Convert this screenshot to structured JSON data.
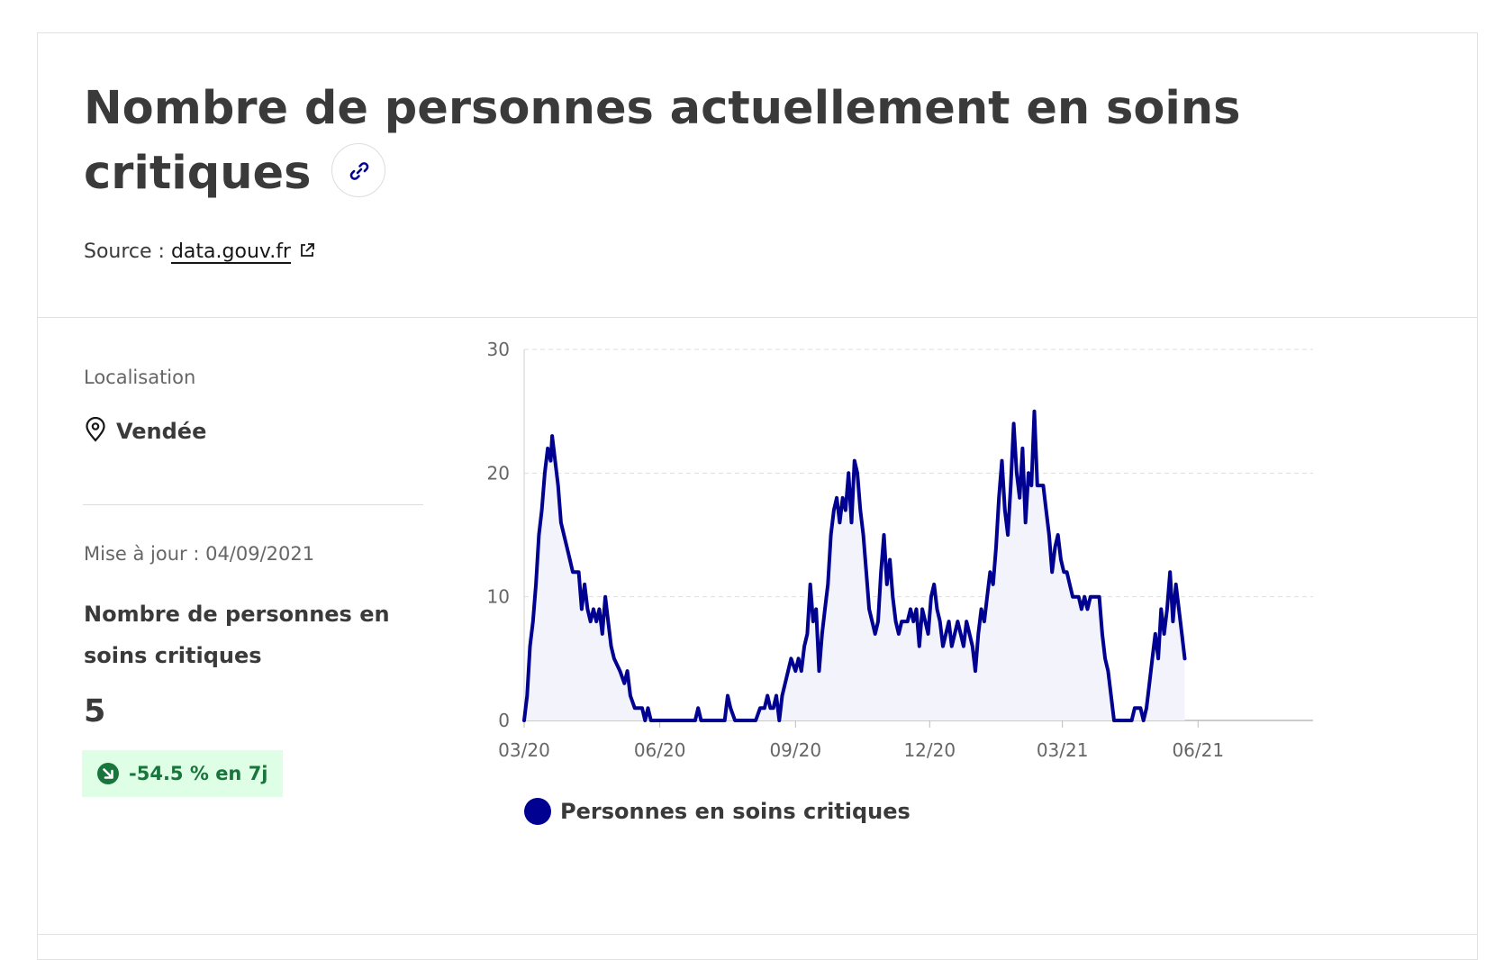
{
  "header": {
    "title": "Nombre de personnes actuellement en soins critiques",
    "source_label": "Source :",
    "source_link": "data.gouv.fr"
  },
  "location": {
    "label": "Localisation",
    "value": "Vendée"
  },
  "stats": {
    "updated": "Mise à jour : 04/09/2021",
    "metric_label": "Nombre de personnes en soins critiques",
    "metric_value": "5",
    "trend": "-54.5 % en 7j"
  },
  "icons": {
    "link": "link-icon",
    "external": "external-link-icon",
    "location": "map-pin-icon",
    "trend": "arrow-down-right-icon"
  },
  "colors": {
    "series": "#000091",
    "area": "#f3f3fc",
    "trend_bg": "#dffee6",
    "trend_fg": "#18753c"
  },
  "chart_data": {
    "type": "area",
    "x_start": "2020-03-18",
    "x_end": "2021-09-04",
    "ylim": [
      0,
      30
    ],
    "yticks": [
      0,
      10,
      20,
      30
    ],
    "xticks": [
      {
        "label": "03/20",
        "date": "2020-03-18"
      },
      {
        "label": "06/20",
        "date": "2020-06-18"
      },
      {
        "label": "09/20",
        "date": "2020-09-18"
      },
      {
        "label": "12/20",
        "date": "2020-12-18"
      },
      {
        "label": "03/21",
        "date": "2021-03-18"
      },
      {
        "label": "06/21",
        "date": "2021-06-18"
      }
    ],
    "grid": true,
    "legend_position": "bottom",
    "series": [
      {
        "name": "Personnes en soins critiques",
        "points": [
          [
            "2020-03-18",
            0
          ],
          [
            "2020-03-20",
            2
          ],
          [
            "2020-03-22",
            6
          ],
          [
            "2020-03-24",
            8
          ],
          [
            "2020-03-26",
            11
          ],
          [
            "2020-03-28",
            15
          ],
          [
            "2020-03-30",
            17
          ],
          [
            "2020-04-01",
            20
          ],
          [
            "2020-04-03",
            22
          ],
          [
            "2020-04-05",
            21
          ],
          [
            "2020-04-06",
            23
          ],
          [
            "2020-04-08",
            21
          ],
          [
            "2020-04-10",
            19
          ],
          [
            "2020-04-12",
            16
          ],
          [
            "2020-04-14",
            15
          ],
          [
            "2020-04-16",
            14
          ],
          [
            "2020-04-18",
            13
          ],
          [
            "2020-04-20",
            12
          ],
          [
            "2020-04-24",
            12
          ],
          [
            "2020-04-26",
            9
          ],
          [
            "2020-04-28",
            11
          ],
          [
            "2020-04-30",
            9
          ],
          [
            "2020-05-02",
            8
          ],
          [
            "2020-05-04",
            9
          ],
          [
            "2020-05-06",
            8
          ],
          [
            "2020-05-08",
            9
          ],
          [
            "2020-05-10",
            7
          ],
          [
            "2020-05-12",
            10
          ],
          [
            "2020-05-14",
            8
          ],
          [
            "2020-05-16",
            6
          ],
          [
            "2020-05-18",
            5
          ],
          [
            "2020-05-22",
            4
          ],
          [
            "2020-05-25",
            3
          ],
          [
            "2020-05-27",
            4
          ],
          [
            "2020-05-29",
            2
          ],
          [
            "2020-06-01",
            1
          ],
          [
            "2020-06-06",
            1
          ],
          [
            "2020-06-08",
            0
          ],
          [
            "2020-06-10",
            1
          ],
          [
            "2020-06-12",
            0
          ],
          [
            "2020-07-12",
            0
          ],
          [
            "2020-07-14",
            1
          ],
          [
            "2020-07-16",
            0
          ],
          [
            "2020-08-01",
            0
          ],
          [
            "2020-08-03",
            2
          ],
          [
            "2020-08-05",
            1
          ],
          [
            "2020-08-08",
            0
          ],
          [
            "2020-08-22",
            0
          ],
          [
            "2020-08-25",
            1
          ],
          [
            "2020-08-28",
            1
          ],
          [
            "2020-08-30",
            2
          ],
          [
            "2020-09-01",
            1
          ],
          [
            "2020-09-03",
            1
          ],
          [
            "2020-09-05",
            2
          ],
          [
            "2020-09-07",
            0
          ],
          [
            "2020-09-09",
            2
          ],
          [
            "2020-09-11",
            3
          ],
          [
            "2020-09-13",
            4
          ],
          [
            "2020-09-15",
            5
          ],
          [
            "2020-09-18",
            4
          ],
          [
            "2020-09-20",
            5
          ],
          [
            "2020-09-22",
            4
          ],
          [
            "2020-09-24",
            6
          ],
          [
            "2020-09-26",
            7
          ],
          [
            "2020-09-28",
            11
          ],
          [
            "2020-09-30",
            8
          ],
          [
            "2020-10-02",
            9
          ],
          [
            "2020-10-04",
            4
          ],
          [
            "2020-10-06",
            7
          ],
          [
            "2020-10-08",
            9
          ],
          [
            "2020-10-10",
            11
          ],
          [
            "2020-10-12",
            15
          ],
          [
            "2020-10-14",
            17
          ],
          [
            "2020-10-16",
            18
          ],
          [
            "2020-10-18",
            16
          ],
          [
            "2020-10-20",
            18
          ],
          [
            "2020-10-22",
            17
          ],
          [
            "2020-10-24",
            20
          ],
          [
            "2020-10-26",
            16
          ],
          [
            "2020-10-28",
            21
          ],
          [
            "2020-10-30",
            20
          ],
          [
            "2020-11-01",
            17
          ],
          [
            "2020-11-03",
            15
          ],
          [
            "2020-11-05",
            12
          ],
          [
            "2020-11-07",
            9
          ],
          [
            "2020-11-09",
            8
          ],
          [
            "2020-11-11",
            7
          ],
          [
            "2020-11-13",
            8
          ],
          [
            "2020-11-15",
            12
          ],
          [
            "2020-11-17",
            15
          ],
          [
            "2020-11-19",
            11
          ],
          [
            "2020-11-21",
            13
          ],
          [
            "2020-11-23",
            10
          ],
          [
            "2020-11-25",
            8
          ],
          [
            "2020-11-27",
            7
          ],
          [
            "2020-11-29",
            8
          ],
          [
            "2020-12-03",
            8
          ],
          [
            "2020-12-05",
            9
          ],
          [
            "2020-12-07",
            8
          ],
          [
            "2020-12-09",
            9
          ],
          [
            "2020-12-11",
            6
          ],
          [
            "2020-12-13",
            9
          ],
          [
            "2020-12-15",
            8
          ],
          [
            "2020-12-17",
            7
          ],
          [
            "2020-12-19",
            10
          ],
          [
            "2020-12-21",
            11
          ],
          [
            "2020-12-23",
            9
          ],
          [
            "2020-12-25",
            8
          ],
          [
            "2020-12-27",
            6
          ],
          [
            "2020-12-29",
            7
          ],
          [
            "2020-12-31",
            8
          ],
          [
            "2021-01-02",
            6
          ],
          [
            "2021-01-04",
            7
          ],
          [
            "2021-01-06",
            8
          ],
          [
            "2021-01-08",
            7
          ],
          [
            "2021-01-10",
            6
          ],
          [
            "2021-01-12",
            8
          ],
          [
            "2021-01-14",
            7
          ],
          [
            "2021-01-16",
            6
          ],
          [
            "2021-01-18",
            4
          ],
          [
            "2021-01-20",
            7
          ],
          [
            "2021-01-22",
            9
          ],
          [
            "2021-01-24",
            8
          ],
          [
            "2021-01-26",
            10
          ],
          [
            "2021-01-28",
            12
          ],
          [
            "2021-01-30",
            11
          ],
          [
            "2021-02-01",
            14
          ],
          [
            "2021-02-03",
            18
          ],
          [
            "2021-02-05",
            21
          ],
          [
            "2021-02-07",
            17
          ],
          [
            "2021-02-09",
            15
          ],
          [
            "2021-02-11",
            19
          ],
          [
            "2021-02-13",
            24
          ],
          [
            "2021-02-15",
            20
          ],
          [
            "2021-02-17",
            18
          ],
          [
            "2021-02-19",
            22
          ],
          [
            "2021-02-21",
            16
          ],
          [
            "2021-02-23",
            20
          ],
          [
            "2021-02-25",
            19
          ],
          [
            "2021-02-27",
            25
          ],
          [
            "2021-03-01",
            19
          ],
          [
            "2021-03-05",
            19
          ],
          [
            "2021-03-07",
            17
          ],
          [
            "2021-03-09",
            15
          ],
          [
            "2021-03-11",
            12
          ],
          [
            "2021-03-13",
            14
          ],
          [
            "2021-03-15",
            15
          ],
          [
            "2021-03-17",
            13
          ],
          [
            "2021-03-19",
            12
          ],
          [
            "2021-03-21",
            12
          ],
          [
            "2021-03-23",
            11
          ],
          [
            "2021-03-25",
            10
          ],
          [
            "2021-03-29",
            10
          ],
          [
            "2021-03-31",
            9
          ],
          [
            "2021-04-02",
            10
          ],
          [
            "2021-04-04",
            9
          ],
          [
            "2021-04-06",
            10
          ],
          [
            "2021-04-12",
            10
          ],
          [
            "2021-04-14",
            7
          ],
          [
            "2021-04-16",
            5
          ],
          [
            "2021-04-18",
            4
          ],
          [
            "2021-04-20",
            2
          ],
          [
            "2021-04-22",
            0
          ],
          [
            "2021-05-04",
            0
          ],
          [
            "2021-05-06",
            1
          ],
          [
            "2021-05-10",
            1
          ],
          [
            "2021-05-12",
            0
          ],
          [
            "2021-05-14",
            1
          ],
          [
            "2021-05-16",
            3
          ],
          [
            "2021-05-18",
            5
          ],
          [
            "2021-05-20",
            7
          ],
          [
            "2021-05-22",
            5
          ],
          [
            "2021-05-24",
            9
          ],
          [
            "2021-05-26",
            7
          ],
          [
            "2021-05-28",
            9
          ],
          [
            "2021-05-30",
            12
          ],
          [
            "2021-06-01",
            8
          ],
          [
            "2021-06-03",
            11
          ],
          [
            "2021-06-05",
            9
          ],
          [
            "2021-06-07",
            7
          ],
          [
            "2021-06-09",
            5
          ]
        ]
      }
    ]
  }
}
